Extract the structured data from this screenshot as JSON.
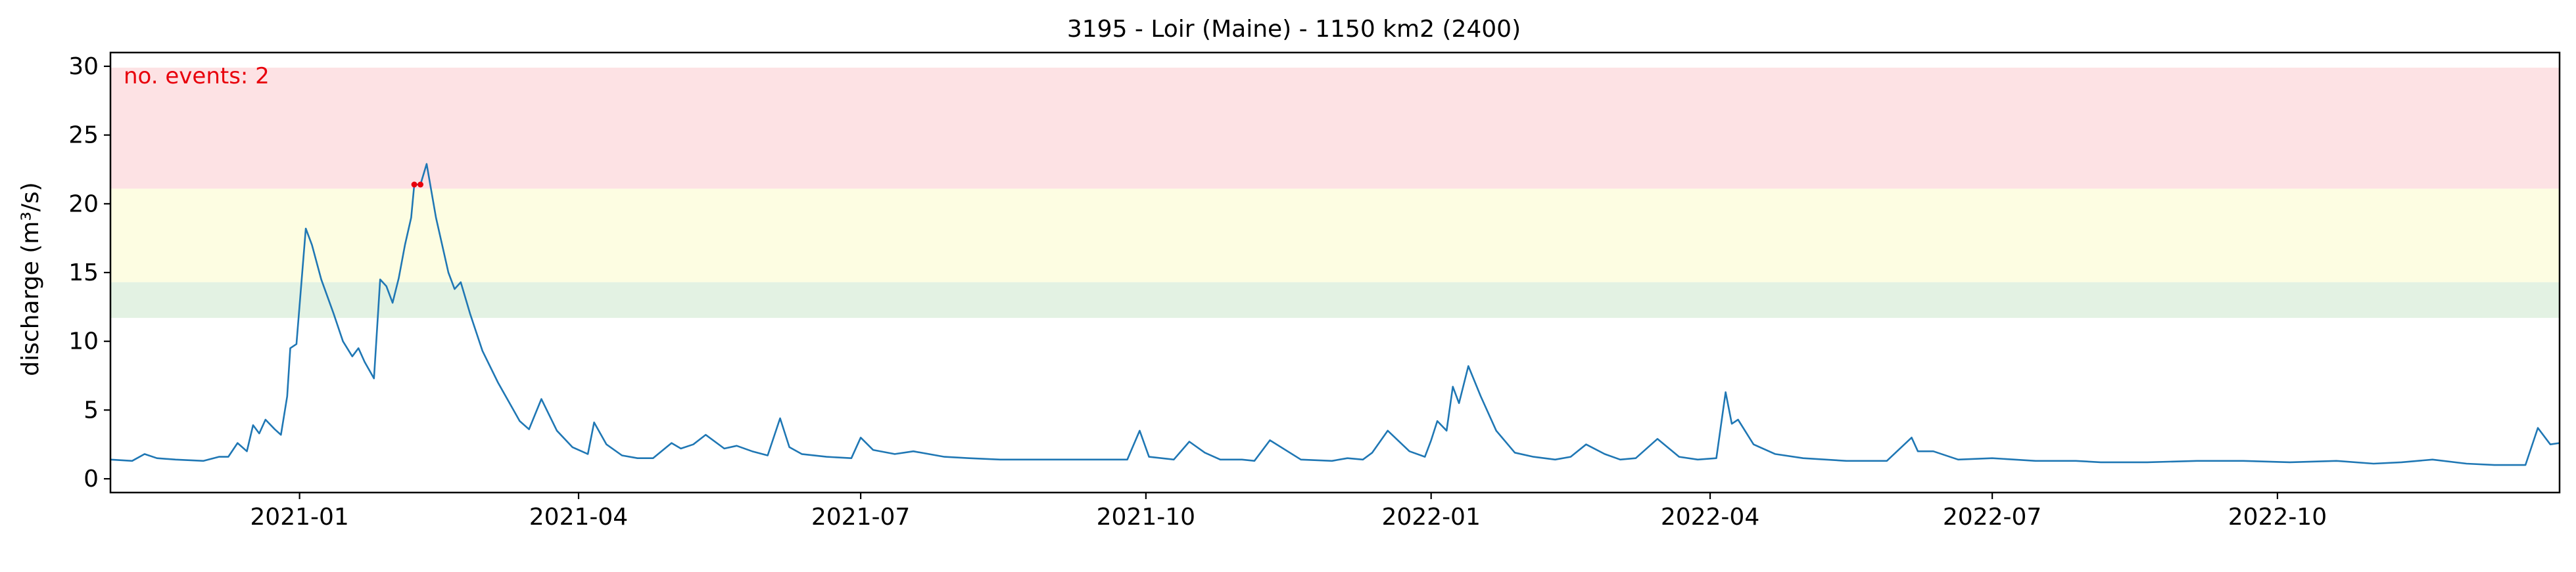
{
  "chart_data": {
    "type": "line",
    "title": "3195 - Loir (Maine) - 1150 km2 (2400)",
    "xlabel": "",
    "ylabel": "discharge (m³/s)",
    "annotation": "no. events: 2",
    "xlim": [
      "2020-11-01",
      "2022-12-31"
    ],
    "ylim": [
      -1,
      31
    ],
    "x_ticks": [
      "2021-01",
      "2021-04",
      "2021-07",
      "2021-10",
      "2022-01",
      "2022-04",
      "2022-07",
      "2022-10"
    ],
    "y_ticks": [
      0,
      5,
      10,
      15,
      20,
      25,
      30
    ],
    "grid": false,
    "bands": [
      {
        "y0": 11.7,
        "y1": 14.3,
        "color": "#e3f2e3"
      },
      {
        "y0": 14.3,
        "y1": 21.1,
        "color": "#fdfde2"
      },
      {
        "y0": 21.1,
        "y1": 29.9,
        "color": "#fde2e4"
      }
    ],
    "colors": {
      "line": "#1f77b4",
      "events": "#e8000b",
      "annotation": "#e8000b"
    },
    "series": [
      {
        "x": [
          "2020-11-01",
          "2020-11-08",
          "2020-11-12",
          "2020-11-16",
          "2020-11-22",
          "2020-12-01",
          "2020-12-06",
          "2020-12-09",
          "2020-12-12",
          "2020-12-15",
          "2020-12-17",
          "2020-12-19",
          "2020-12-21",
          "2020-12-24",
          "2020-12-26",
          "2020-12-28",
          "2020-12-29",
          "2020-12-31",
          "2021-01-03",
          "2021-01-05",
          "2021-01-08",
          "2021-01-12",
          "2021-01-15",
          "2021-01-18",
          "2021-01-20",
          "2021-01-22",
          "2021-01-25",
          "2021-01-27",
          "2021-01-29",
          "2021-01-31",
          "2021-02-02",
          "2021-02-04",
          "2021-02-06",
          "2021-02-07",
          "2021-02-09",
          "2021-02-11",
          "2021-02-14",
          "2021-02-18",
          "2021-02-20",
          "2021-02-22",
          "2021-02-25",
          "2021-03-01",
          "2021-03-06",
          "2021-03-11",
          "2021-03-13",
          "2021-03-16",
          "2021-03-20",
          "2021-03-25",
          "2021-03-30",
          "2021-04-04",
          "2021-04-06",
          "2021-04-10",
          "2021-04-15",
          "2021-04-20",
          "2021-04-25",
          "2021-05-01",
          "2021-05-04",
          "2021-05-08",
          "2021-05-12",
          "2021-05-18",
          "2021-05-22",
          "2021-05-27",
          "2021-06-01",
          "2021-06-05",
          "2021-06-08",
          "2021-06-12",
          "2021-06-20",
          "2021-06-28",
          "2021-07-01",
          "2021-07-05",
          "2021-07-12",
          "2021-07-18",
          "2021-07-28",
          "2021-08-05",
          "2021-08-15",
          "2021-08-25",
          "2021-09-10",
          "2021-09-25",
          "2021-09-29",
          "2021-10-02",
          "2021-10-10",
          "2021-10-15",
          "2021-10-20",
          "2021-10-25",
          "2021-11-01",
          "2021-11-05",
          "2021-11-10",
          "2021-11-20",
          "2021-11-30",
          "2021-12-05",
          "2021-12-10",
          "2021-12-13",
          "2021-12-18",
          "2021-12-25",
          "2021-12-30",
          "2022-01-01",
          "2022-01-03",
          "2022-01-06",
          "2022-01-08",
          "2022-01-10",
          "2022-01-13",
          "2022-01-17",
          "2022-01-22",
          "2022-01-28",
          "2022-02-03",
          "2022-02-10",
          "2022-02-15",
          "2022-02-20",
          "2022-02-26",
          "2022-03-03",
          "2022-03-08",
          "2022-03-15",
          "2022-03-22",
          "2022-03-28",
          "2022-04-03",
          "2022-04-06",
          "2022-04-08",
          "2022-04-10",
          "2022-04-15",
          "2022-04-22",
          "2022-05-01",
          "2022-05-15",
          "2022-05-28",
          "2022-06-05",
          "2022-06-07",
          "2022-06-12",
          "2022-06-20",
          "2022-07-01",
          "2022-07-15",
          "2022-07-28",
          "2022-08-05",
          "2022-08-20",
          "2022-09-05",
          "2022-09-20",
          "2022-10-05",
          "2022-10-20",
          "2022-11-01",
          "2022-11-10",
          "2022-11-20",
          "2022-12-01",
          "2022-12-10",
          "2022-12-20",
          "2022-12-24",
          "2022-12-28",
          "2022-12-31"
        ],
        "y": [
          1.4,
          1.3,
          1.8,
          1.5,
          1.4,
          1.3,
          1.6,
          1.6,
          2.6,
          2.0,
          3.9,
          3.3,
          4.3,
          3.6,
          3.2,
          6.0,
          9.5,
          9.8,
          18.2,
          17.0,
          14.5,
          12.0,
          10.0,
          8.9,
          9.5,
          8.5,
          7.3,
          14.5,
          14.0,
          12.8,
          14.6,
          17.0,
          19.0,
          21.4,
          21.4,
          22.9,
          19.0,
          15.0,
          13.8,
          14.3,
          12.0,
          9.3,
          7.0,
          5.0,
          4.2,
          3.6,
          5.8,
          3.5,
          2.3,
          1.8,
          4.1,
          2.5,
          1.7,
          1.5,
          1.5,
          2.6,
          2.2,
          2.5,
          3.2,
          2.2,
          2.4,
          2.0,
          1.7,
          4.4,
          2.3,
          1.8,
          1.6,
          1.5,
          3.0,
          2.1,
          1.8,
          2.0,
          1.6,
          1.5,
          1.4,
          1.4,
          1.4,
          1.4,
          3.5,
          1.6,
          1.4,
          2.7,
          1.9,
          1.4,
          1.4,
          1.3,
          2.8,
          1.4,
          1.3,
          1.5,
          1.4,
          1.9,
          3.5,
          2.0,
          1.6,
          2.8,
          4.2,
          3.5,
          6.7,
          5.5,
          8.2,
          6.0,
          3.5,
          1.9,
          1.6,
          1.4,
          1.6,
          2.5,
          1.8,
          1.4,
          1.5,
          2.9,
          1.6,
          1.4,
          1.5,
          6.3,
          4.0,
          4.3,
          2.5,
          1.8,
          1.5,
          1.3,
          1.3,
          3.0,
          2.0,
          2.0,
          1.4,
          1.5,
          1.3,
          1.3,
          1.2,
          1.2,
          1.3,
          1.3,
          1.2,
          1.3,
          1.1,
          1.2,
          1.4,
          1.1,
          1.0,
          1.0,
          3.7,
          2.5,
          2.6
        ]
      }
    ],
    "events": {
      "x": [
        "2021-02-07",
        "2021-02-09"
      ],
      "y": [
        21.4,
        21.4
      ]
    }
  }
}
